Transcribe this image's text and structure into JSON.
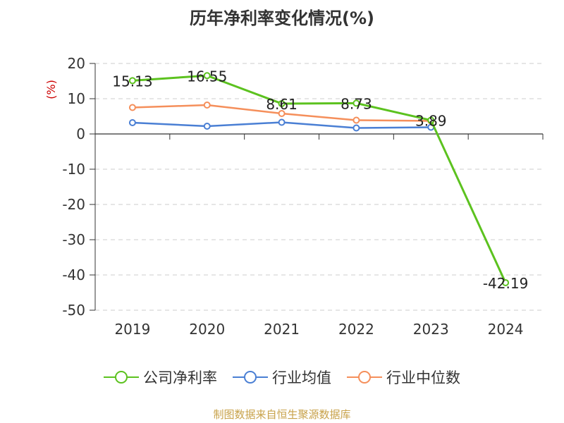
{
  "chart_data": {
    "type": "line",
    "title": "历年净利率变化情况(%)",
    "ylabel": "(%)",
    "xlabel": "",
    "categories": [
      "2019",
      "2020",
      "2021",
      "2022",
      "2023",
      "2024"
    ],
    "ylim": [
      -50,
      20
    ],
    "yticks": [
      20,
      10,
      0,
      -10,
      -20,
      -30,
      -40,
      -50
    ],
    "grid": true,
    "legend_position": "bottom",
    "series": [
      {
        "name": "公司净利率",
        "color": "#5cc21f",
        "values": [
          15.13,
          16.55,
          8.61,
          8.73,
          3.89,
          -42.19
        ],
        "labels": [
          "15.13",
          "16.55",
          "8.61",
          "8.73",
          "3.89",
          "-42.19"
        ]
      },
      {
        "name": "行业均值",
        "color": "#4a7fd4",
        "values": [
          3.2,
          2.2,
          3.3,
          1.7,
          1.9,
          null
        ]
      },
      {
        "name": "行业中位数",
        "color": "#f58f5b",
        "values": [
          7.5,
          8.2,
          5.8,
          3.9,
          3.7,
          null
        ]
      }
    ]
  },
  "footer": {
    "source": "制图数据来自恒生聚源数据库"
  }
}
